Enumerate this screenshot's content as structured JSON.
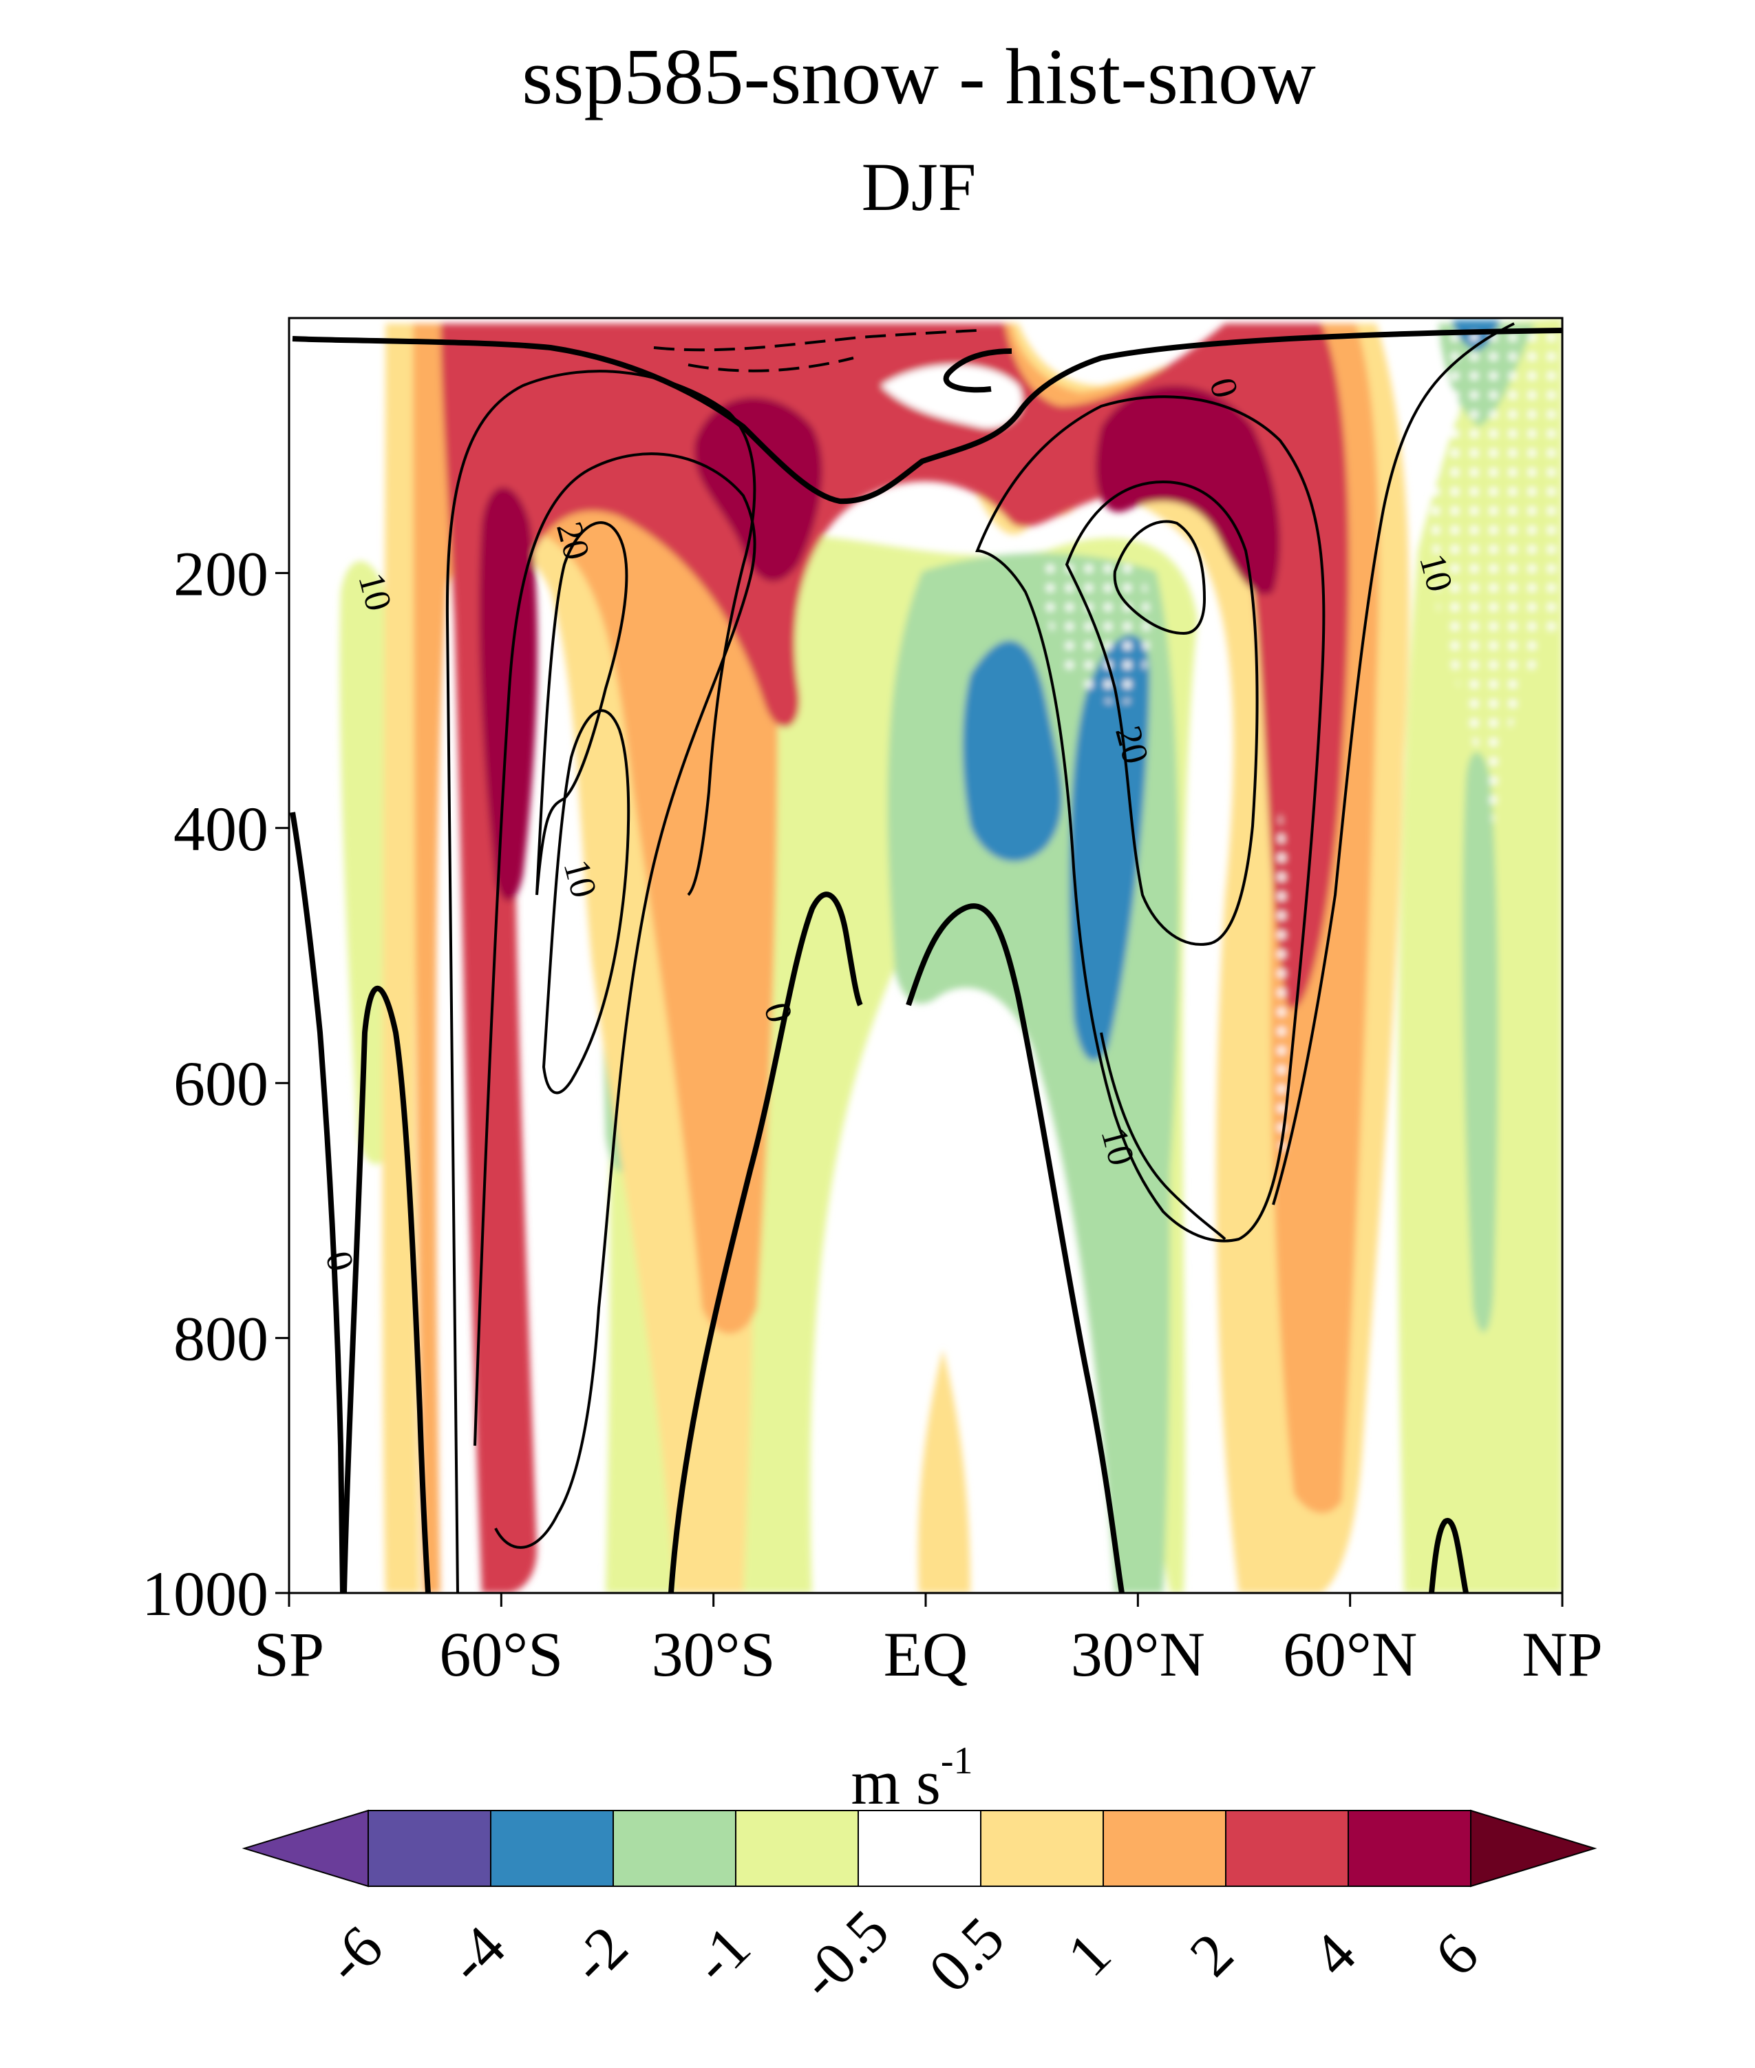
{
  "chart_data": {
    "type": "contour",
    "title": "ssp585-snow - hist-snow",
    "subtitle": "DJF",
    "xlabel": "",
    "ylabel": "",
    "x_ticks": [
      "SP",
      "60°S",
      "30°S",
      "EQ",
      "30°N",
      "60°N",
      "NP"
    ],
    "y_ticks": [
      "200",
      "400",
      "600",
      "800",
      "1000"
    ],
    "x_range": [
      -90,
      90
    ],
    "y_range": [
      1000,
      0
    ],
    "colorbar": {
      "units_main": "m s",
      "units_sup": "-1",
      "levels": [
        "-6",
        "-4",
        "-2",
        "-1",
        "-0.5",
        "0.5",
        "1",
        "2",
        "4",
        "6"
      ],
      "colors": [
        "#6a3d9a",
        "#5e4fa2",
        "#3288bd",
        "#abdda4",
        "#e6f598",
        "#ffffff",
        "#fee08b",
        "#fdae61",
        "#d53e4f",
        "#9e0142",
        "#6b0020"
      ]
    },
    "contour_labels": [
      {
        "text": "0",
        "lat": 42,
        "p": 55
      },
      {
        "text": "10",
        "lat": 72,
        "p": 200
      },
      {
        "text": "20",
        "lat": -50,
        "p": 175
      },
      {
        "text": "10",
        "lat": -78,
        "p": 215
      },
      {
        "text": "10",
        "lat": -49,
        "p": 440
      },
      {
        "text": "0",
        "lat": -21,
        "p": 545
      },
      {
        "text": "0",
        "lat": -83,
        "p": 740
      },
      {
        "text": "20",
        "lat": 29,
        "p": 335
      },
      {
        "text": "10",
        "lat": 27,
        "p": 650
      }
    ]
  }
}
